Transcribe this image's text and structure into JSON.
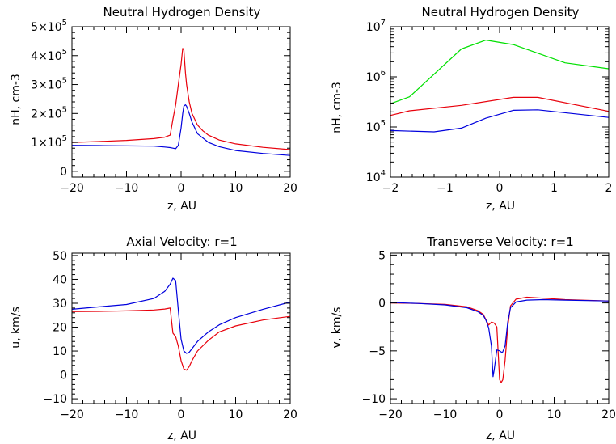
{
  "colors": {
    "red": "#e8000b",
    "blue": "#0000dd",
    "green": "#00e000"
  },
  "chart_data": [
    {
      "type": "line",
      "title": "Neutral Hydrogen Density",
      "xlabel": "z, AU",
      "ylabel": "nH, cm-3",
      "xlim": [
        -20,
        20
      ],
      "ylim": [
        -20000,
        500000
      ],
      "xticks": [
        -20,
        -10,
        0,
        10,
        20
      ],
      "xtick_labels": [
        "−20",
        "−10",
        "0",
        "10",
        "20"
      ],
      "yticks": [
        0,
        100000,
        200000,
        300000,
        400000,
        500000
      ],
      "ytick_mantissas": [
        "0",
        "1×10",
        "2×10",
        "3×10",
        "4×10",
        "5×10"
      ],
      "ytick_exponents": [
        "",
        "5",
        "5",
        "5",
        "5",
        "5"
      ],
      "series": [
        {
          "color": "red",
          "x": [
            -20,
            -15,
            -10,
            -5,
            -3,
            -2,
            -1.5,
            -1,
            -0.5,
            0,
            0.3,
            0.5,
            0.8,
            1,
            1.5,
            2,
            3,
            4,
            5,
            7,
            10,
            15,
            20
          ],
          "y": [
            100000,
            103000,
            107000,
            113000,
            118000,
            125000,
            180000,
            230000,
            300000,
            370000,
            425000,
            420000,
            340000,
            300000,
            240000,
            200000,
            160000,
            140000,
            125000,
            108000,
            95000,
            83000,
            75000
          ]
        },
        {
          "color": "blue",
          "x": [
            -20,
            -15,
            -10,
            -5,
            -3,
            -2,
            -1.5,
            -1,
            -0.5,
            0,
            0.3,
            0.5,
            0.8,
            1,
            1.5,
            2,
            3,
            5,
            7,
            10,
            15,
            20
          ],
          "y": [
            90000,
            89000,
            88000,
            87000,
            84000,
            82000,
            80000,
            78000,
            90000,
            150000,
            200000,
            225000,
            230000,
            225000,
            200000,
            170000,
            130000,
            100000,
            85000,
            72000,
            62000,
            55000
          ]
        }
      ]
    },
    {
      "type": "line",
      "title": "Neutral Hydrogen Density",
      "xlabel": "z, AU",
      "ylabel": "nH, cm-3",
      "xlim": [
        -2,
        2
      ],
      "ylim": [
        10000,
        10000000
      ],
      "yscale": "log",
      "xticks": [
        -2,
        -1,
        0,
        1,
        2
      ],
      "xtick_labels": [
        "−2",
        "−1",
        "0",
        "1",
        "2"
      ],
      "yticks": [
        10000,
        100000,
        1000000,
        10000000
      ],
      "ytick_mantissas": [
        "10",
        "10",
        "10",
        "10"
      ],
      "ytick_exponents": [
        "4",
        "5",
        "6",
        "7"
      ],
      "series": [
        {
          "color": "green",
          "x": [
            -2,
            -1.65,
            -0.7,
            -0.25,
            0.25,
            1.2,
            2
          ],
          "y": [
            290000,
            400000,
            3600000,
            5400000,
            4400000,
            1900000,
            1450000
          ]
        },
        {
          "color": "red",
          "x": [
            -2,
            -1.65,
            -0.7,
            0.25,
            0.7,
            2
          ],
          "y": [
            170000,
            210000,
            270000,
            390000,
            390000,
            205000
          ]
        },
        {
          "color": "blue",
          "x": [
            -2,
            -1.2,
            -0.7,
            -0.25,
            0.25,
            0.7,
            2
          ],
          "y": [
            85000,
            80000,
            95000,
            150000,
            215000,
            220000,
            155000
          ]
        }
      ]
    },
    {
      "type": "line",
      "title": "Axial Velocity: r=1",
      "xlabel": "z, AU",
      "ylabel": "u, km/s",
      "xlim": [
        -20,
        20
      ],
      "ylim": [
        -12,
        51
      ],
      "xticks": [
        -20,
        -10,
        0,
        10,
        20
      ],
      "xtick_labels": [
        "−20",
        "−10",
        "0",
        "10",
        "20"
      ],
      "yticks": [
        -10,
        0,
        10,
        20,
        30,
        40,
        50
      ],
      "ytick_labels": [
        "−10",
        "0",
        "10",
        "20",
        "30",
        "40",
        "50"
      ],
      "series": [
        {
          "color": "red",
          "x": [
            -20,
            -15,
            -10,
            -5,
            -3,
            -2,
            -1.5,
            -1,
            -0.5,
            0,
            0.5,
            1,
            1.5,
            2,
            3,
            5,
            7,
            10,
            15,
            20
          ],
          "y": [
            26.5,
            26.6,
            26.8,
            27.2,
            27.6,
            28,
            17.5,
            16,
            12,
            6,
            2.5,
            2,
            3.5,
            6,
            10,
            14.5,
            18,
            20.5,
            23,
            24.5
          ]
        },
        {
          "color": "blue",
          "x": [
            -20,
            -15,
            -10,
            -5,
            -3,
            -2,
            -1.5,
            -1,
            -0.5,
            0,
            0.5,
            1,
            1.5,
            2,
            3,
            5,
            7,
            10,
            15,
            20
          ],
          "y": [
            27.5,
            28.5,
            29.5,
            32,
            35,
            38,
            40.5,
            39.5,
            27,
            15,
            10,
            9,
            9.5,
            11,
            14,
            18,
            21,
            24,
            27.5,
            30.5
          ]
        }
      ]
    },
    {
      "type": "line",
      "title": "Transverse Velocity: r=1",
      "xlabel": "z, AU",
      "ylabel": "v, km/s",
      "xlim": [
        -20,
        20
      ],
      "ylim": [
        -10.5,
        5.2
      ],
      "xticks": [
        -20,
        -10,
        0,
        10,
        20
      ],
      "xtick_labels": [
        "−20",
        "−10",
        "0",
        "10",
        "20"
      ],
      "yticks": [
        -10,
        -5,
        0,
        5
      ],
      "ytick_labels": [
        "−10",
        "−5",
        "0",
        "5"
      ],
      "series": [
        {
          "color": "red",
          "x": [
            -20,
            -15,
            -10,
            -6,
            -4,
            -3,
            -2,
            -1.5,
            -1,
            -0.5,
            0,
            0.3,
            0.6,
            1,
            1.5,
            2,
            3,
            5,
            8,
            12,
            20
          ],
          "y": [
            0,
            -0.05,
            -0.15,
            -0.4,
            -0.8,
            -1.2,
            -2.3,
            -2,
            -2.1,
            -2.5,
            -8,
            -8.3,
            -8,
            -6,
            -2.5,
            -0.3,
            0.4,
            0.6,
            0.5,
            0.35,
            0.2
          ]
        },
        {
          "color": "blue",
          "x": [
            -20,
            -15,
            -10,
            -6,
            -4,
            -3,
            -2.5,
            -2,
            -1.5,
            -1.2,
            -1,
            -0.5,
            0,
            0.5,
            1,
            1.5,
            2,
            3,
            5,
            8,
            12,
            20
          ],
          "y": [
            0.05,
            -0.05,
            -0.2,
            -0.5,
            -0.9,
            -1.3,
            -1.8,
            -2.6,
            -4.5,
            -7.7,
            -7,
            -4.9,
            -5,
            -5.2,
            -4.5,
            -2,
            -0.5,
            0.1,
            0.3,
            0.35,
            0.3,
            0.2
          ]
        }
      ]
    }
  ]
}
